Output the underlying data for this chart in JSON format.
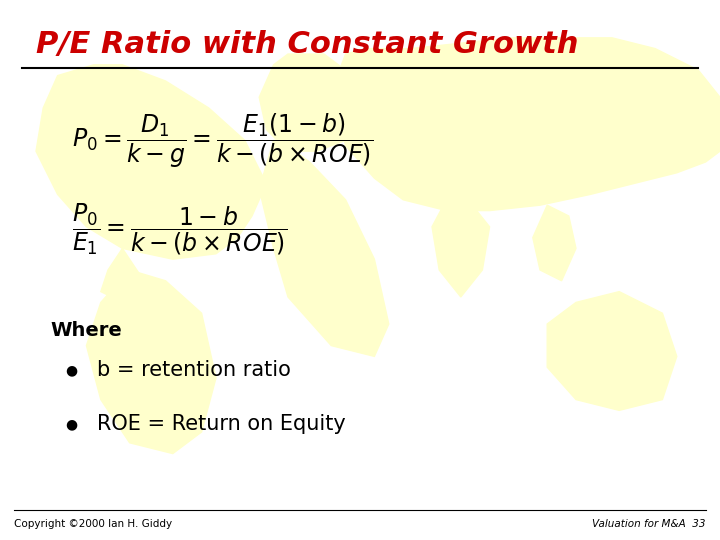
{
  "title": "P/E Ratio with Constant Growth",
  "title_color": "#CC0000",
  "title_fontsize": 22,
  "bg_color": "#FFFFFF",
  "footer_left": "Copyright ©2000 Ian H. Giddy",
  "footer_right": "Valuation for M&A  33",
  "footer_fontsize": 7.5,
  "where_text": "Where",
  "bullet1": "b = retention ratio",
  "bullet2": "ROE = Return on Equity",
  "world_map_color": "#FFFFCC",
  "line_color": "#000000",
  "formula_fontsize": 17,
  "where_fontsize": 14,
  "bullet_fontsize": 15
}
